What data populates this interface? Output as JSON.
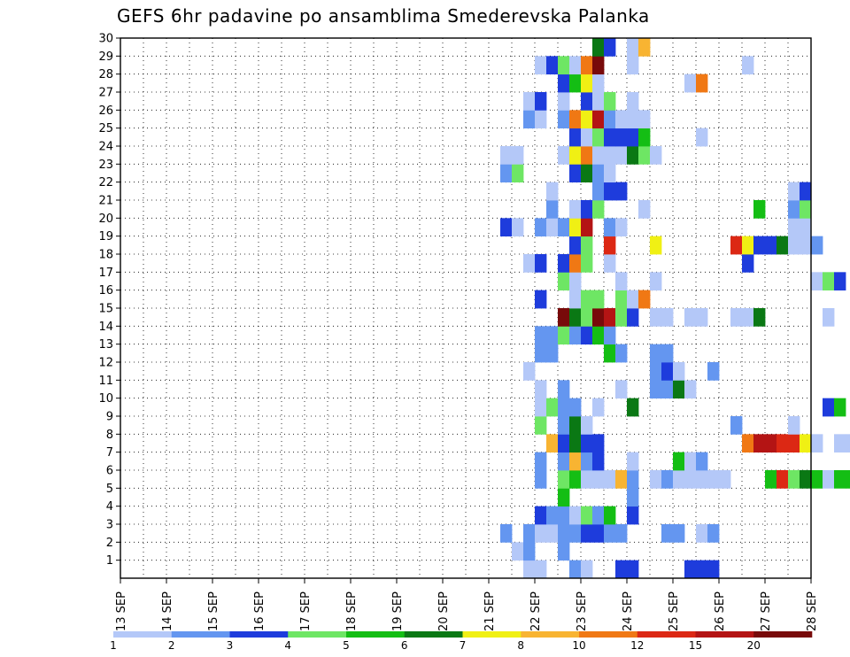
{
  "title": "GEFS 6hr padavine po ansamblima Smederevska Palanka",
  "chart_data": {
    "type": "heatmap",
    "title": "GEFS 6hr padavine po ansamblima Smederevska Palanka",
    "xlabel": "",
    "ylabel": "",
    "x_ticks": [
      "13 SEP",
      "14 SEP",
      "15 SEP",
      "16 SEP",
      "17 SEP",
      "18 SEP",
      "19 SEP",
      "20 SEP",
      "21 SEP",
      "22 SEP",
      "23 SEP",
      "24 SEP",
      "25 SEP",
      "26 SEP",
      "27 SEP",
      "28 SEP"
    ],
    "y_ticks": [
      1,
      2,
      3,
      4,
      5,
      6,
      7,
      8,
      9,
      10,
      11,
      12,
      13,
      14,
      15,
      16,
      17,
      18,
      19,
      20,
      21,
      22,
      23,
      24,
      25,
      26,
      27,
      28,
      29,
      30
    ],
    "x_range_days": [
      13,
      28
    ],
    "y_range": [
      0,
      30
    ],
    "steps_per_day": 4,
    "grid": true,
    "legend": {
      "position": "bottom",
      "labels": [
        "1",
        "2",
        "3",
        "4",
        "5",
        "6",
        "7",
        "8",
        "10",
        "12",
        "15",
        "20"
      ],
      "colors": [
        "#b4c8f8",
        "#6496f0",
        "#1e3cdc",
        "#6ee664",
        "#14be14",
        "#0a7814",
        "#f0f014",
        "#f8b432",
        "#f07814",
        "#dc2814",
        "#b41414",
        "#780a0a"
      ]
    },
    "cells_format": "[member, step_index_from_13SEP_00Z, color_class 0..11]",
    "cells": [
      [
        1,
        35,
        0
      ],
      [
        1,
        36,
        0
      ],
      [
        1,
        39,
        1
      ],
      [
        1,
        40,
        0
      ],
      [
        1,
        43,
        2
      ],
      [
        1,
        44,
        2
      ],
      [
        1,
        49,
        2
      ],
      [
        1,
        50,
        2
      ],
      [
        1,
        51,
        2
      ],
      [
        2,
        34,
        0
      ],
      [
        2,
        35,
        1
      ],
      [
        2,
        38,
        1
      ],
      [
        3,
        33,
        1
      ],
      [
        3,
        35,
        1
      ],
      [
        3,
        36,
        0
      ],
      [
        3,
        37,
        0
      ],
      [
        3,
        38,
        1
      ],
      [
        3,
        39,
        1
      ],
      [
        3,
        40,
        2
      ],
      [
        3,
        41,
        2
      ],
      [
        3,
        42,
        1
      ],
      [
        3,
        43,
        1
      ],
      [
        3,
        47,
        1
      ],
      [
        3,
        48,
        1
      ],
      [
        3,
        50,
        0
      ],
      [
        3,
        51,
        1
      ],
      [
        3,
        64,
        0
      ],
      [
        3,
        65,
        2
      ],
      [
        3,
        66,
        0
      ],
      [
        3,
        67,
        0
      ],
      [
        3,
        68,
        1
      ],
      [
        3,
        70,
        0
      ],
      [
        3,
        71,
        1
      ],
      [
        3,
        72,
        1
      ],
      [
        3,
        73,
        0
      ],
      [
        3,
        74,
        0
      ],
      [
        3,
        75,
        0
      ],
      [
        3,
        79,
        0
      ],
      [
        3,
        80,
        2
      ],
      [
        3,
        82,
        0
      ],
      [
        3,
        83,
        6
      ],
      [
        3,
        84,
        1
      ],
      [
        3,
        85,
        6
      ],
      [
        3,
        86,
        6
      ],
      [
        3,
        87,
        4
      ],
      [
        3,
        88,
        5
      ],
      [
        3,
        89,
        7
      ],
      [
        3,
        90,
        3
      ],
      [
        3,
        91,
        0
      ],
      [
        4,
        36,
        2
      ],
      [
        4,
        37,
        1
      ],
      [
        4,
        38,
        1
      ],
      [
        4,
        39,
        0
      ],
      [
        4,
        40,
        3
      ],
      [
        4,
        41,
        1
      ],
      [
        4,
        42,
        4
      ],
      [
        4,
        44,
        2
      ],
      [
        4,
        87,
        5
      ],
      [
        4,
        88,
        9
      ],
      [
        5,
        38,
        4
      ],
      [
        5,
        44,
        1
      ],
      [
        5,
        82,
        0
      ],
      [
        5,
        83,
        1
      ],
      [
        5,
        84,
        0
      ],
      [
        5,
        85,
        3
      ],
      [
        5,
        86,
        0
      ],
      [
        6,
        36,
        1
      ],
      [
        6,
        38,
        3
      ],
      [
        6,
        39,
        4
      ],
      [
        6,
        40,
        0
      ],
      [
        6,
        41,
        0
      ],
      [
        6,
        42,
        0
      ],
      [
        6,
        43,
        7
      ],
      [
        6,
        44,
        1
      ],
      [
        6,
        46,
        0
      ],
      [
        6,
        47,
        1
      ],
      [
        6,
        48,
        0
      ],
      [
        6,
        49,
        0
      ],
      [
        6,
        50,
        0
      ],
      [
        6,
        51,
        0
      ],
      [
        6,
        52,
        0
      ],
      [
        6,
        56,
        4
      ],
      [
        6,
        57,
        9
      ],
      [
        6,
        58,
        3
      ],
      [
        6,
        59,
        5
      ],
      [
        6,
        60,
        4
      ],
      [
        6,
        61,
        0
      ],
      [
        6,
        62,
        4
      ],
      [
        6,
        63,
        4
      ],
      [
        6,
        64,
        3
      ],
      [
        6,
        65,
        3
      ],
      [
        6,
        66,
        0
      ],
      [
        6,
        67,
        0
      ],
      [
        6,
        68,
        0
      ],
      [
        6,
        76,
        0
      ],
      [
        6,
        83,
        0
      ],
      [
        6,
        84,
        0
      ],
      [
        6,
        85,
        3
      ],
      [
        6,
        86,
        5
      ],
      [
        6,
        87,
        0
      ],
      [
        7,
        36,
        1
      ],
      [
        7,
        38,
        1
      ],
      [
        7,
        39,
        7
      ],
      [
        7,
        40,
        1
      ],
      [
        7,
        41,
        2
      ],
      [
        7,
        44,
        0
      ],
      [
        7,
        48,
        4
      ],
      [
        7,
        49,
        0
      ],
      [
        7,
        50,
        1
      ],
      [
        8,
        37,
        7
      ],
      [
        8,
        38,
        2
      ],
      [
        8,
        39,
        5
      ],
      [
        8,
        40,
        2
      ],
      [
        8,
        41,
        2
      ],
      [
        8,
        54,
        8
      ],
      [
        8,
        55,
        10
      ],
      [
        8,
        56,
        10
      ],
      [
        8,
        57,
        9
      ],
      [
        8,
        58,
        9
      ],
      [
        8,
        59,
        6
      ],
      [
        8,
        60,
        0
      ],
      [
        8,
        62,
        0
      ],
      [
        8,
        63,
        0
      ],
      [
        8,
        65,
        0
      ],
      [
        8,
        91,
        0
      ],
      [
        9,
        36,
        3
      ],
      [
        9,
        38,
        1
      ],
      [
        9,
        39,
        5
      ],
      [
        9,
        40,
        0
      ],
      [
        9,
        53,
        1
      ],
      [
        9,
        58,
        0
      ],
      [
        10,
        36,
        0
      ],
      [
        10,
        37,
        3
      ],
      [
        10,
        38,
        1
      ],
      [
        10,
        39,
        1
      ],
      [
        10,
        41,
        0
      ],
      [
        10,
        44,
        5
      ],
      [
        10,
        61,
        2
      ],
      [
        10,
        62,
        4
      ],
      [
        11,
        36,
        0
      ],
      [
        11,
        38,
        1
      ],
      [
        11,
        43,
        0
      ],
      [
        11,
        46,
        1
      ],
      [
        11,
        47,
        1
      ],
      [
        11,
        48,
        5
      ],
      [
        11,
        49,
        0
      ],
      [
        12,
        35,
        0
      ],
      [
        12,
        46,
        1
      ],
      [
        12,
        47,
        2
      ],
      [
        12,
        48,
        0
      ],
      [
        12,
        51,
        1
      ],
      [
        13,
        36,
        1
      ],
      [
        13,
        37,
        1
      ],
      [
        13,
        42,
        4
      ],
      [
        13,
        43,
        1
      ],
      [
        13,
        46,
        1
      ],
      [
        13,
        47,
        1
      ],
      [
        14,
        36,
        1
      ],
      [
        14,
        37,
        1
      ],
      [
        14,
        38,
        3
      ],
      [
        14,
        39,
        1
      ],
      [
        14,
        40,
        2
      ],
      [
        14,
        41,
        4
      ],
      [
        14,
        42,
        1
      ],
      [
        14,
        85,
        0
      ],
      [
        14,
        86,
        4
      ],
      [
        15,
        38,
        11
      ],
      [
        15,
        39,
        5
      ],
      [
        15,
        40,
        3
      ],
      [
        15,
        41,
        11
      ],
      [
        15,
        42,
        10
      ],
      [
        15,
        43,
        3
      ],
      [
        15,
        44,
        2
      ],
      [
        15,
        46,
        0
      ],
      [
        15,
        47,
        0
      ],
      [
        15,
        49,
        0
      ],
      [
        15,
        50,
        0
      ],
      [
        15,
        53,
        0
      ],
      [
        15,
        54,
        0
      ],
      [
        15,
        55,
        5
      ],
      [
        15,
        61,
        0
      ],
      [
        15,
        82,
        0
      ],
      [
        15,
        83,
        0
      ],
      [
        15,
        84,
        2
      ],
      [
        15,
        85,
        1
      ],
      [
        15,
        86,
        3
      ],
      [
        16,
        36,
        2
      ],
      [
        16,
        39,
        0
      ],
      [
        16,
        40,
        3
      ],
      [
        16,
        41,
        3
      ],
      [
        16,
        43,
        3
      ],
      [
        16,
        44,
        0
      ],
      [
        16,
        45,
        8
      ],
      [
        17,
        38,
        3
      ],
      [
        17,
        39,
        0
      ],
      [
        17,
        43,
        0
      ],
      [
        17,
        46,
        0
      ],
      [
        17,
        60,
        0
      ],
      [
        17,
        61,
        3
      ],
      [
        17,
        62,
        2
      ],
      [
        17,
        64,
        0
      ],
      [
        17,
        65,
        1
      ],
      [
        17,
        66,
        0
      ],
      [
        17,
        67,
        1
      ],
      [
        17,
        68,
        3
      ],
      [
        17,
        69,
        2
      ],
      [
        18,
        35,
        0
      ],
      [
        18,
        36,
        2
      ],
      [
        18,
        38,
        2
      ],
      [
        18,
        39,
        8
      ],
      [
        18,
        40,
        3
      ],
      [
        18,
        42,
        0
      ],
      [
        18,
        54,
        2
      ],
      [
        19,
        39,
        2
      ],
      [
        19,
        40,
        3
      ],
      [
        19,
        42,
        9
      ],
      [
        19,
        46,
        6
      ],
      [
        19,
        53,
        9
      ],
      [
        19,
        54,
        6
      ],
      [
        19,
        55,
        2
      ],
      [
        19,
        56,
        2
      ],
      [
        19,
        57,
        5
      ],
      [
        19,
        58,
        0
      ],
      [
        19,
        59,
        0
      ],
      [
        19,
        60,
        1
      ],
      [
        20,
        33,
        2
      ],
      [
        20,
        34,
        0
      ],
      [
        20,
        36,
        1
      ],
      [
        20,
        37,
        0
      ],
      [
        20,
        38,
        1
      ],
      [
        20,
        39,
        6
      ],
      [
        20,
        40,
        10
      ],
      [
        20,
        42,
        1
      ],
      [
        20,
        43,
        0
      ],
      [
        20,
        58,
        0
      ],
      [
        20,
        59,
        0
      ],
      [
        20,
        89,
        0
      ],
      [
        20,
        90,
        0
      ],
      [
        21,
        37,
        1
      ],
      [
        21,
        39,
        0
      ],
      [
        21,
        40,
        2
      ],
      [
        21,
        41,
        3
      ],
      [
        21,
        45,
        0
      ],
      [
        21,
        55,
        4
      ],
      [
        21,
        58,
        1
      ],
      [
        21,
        59,
        3
      ],
      [
        22,
        37,
        0
      ],
      [
        22,
        41,
        1
      ],
      [
        22,
        42,
        2
      ],
      [
        22,
        43,
        2
      ],
      [
        22,
        58,
        0
      ],
      [
        22,
        59,
        2
      ],
      [
        22,
        89,
        1
      ],
      [
        22,
        90,
        0
      ],
      [
        23,
        33,
        1
      ],
      [
        23,
        34,
        3
      ],
      [
        23,
        39,
        2
      ],
      [
        23,
        40,
        5
      ],
      [
        23,
        41,
        1
      ],
      [
        23,
        42,
        0
      ],
      [
        24,
        33,
        0
      ],
      [
        24,
        34,
        0
      ],
      [
        24,
        38,
        0
      ],
      [
        24,
        39,
        6
      ],
      [
        24,
        40,
        8
      ],
      [
        24,
        41,
        0
      ],
      [
        24,
        42,
        0
      ],
      [
        24,
        43,
        0
      ],
      [
        24,
        44,
        5
      ],
      [
        24,
        45,
        3
      ],
      [
        24,
        46,
        0
      ],
      [
        25,
        39,
        2
      ],
      [
        25,
        40,
        0
      ],
      [
        25,
        41,
        3
      ],
      [
        25,
        42,
        2
      ],
      [
        25,
        43,
        2
      ],
      [
        25,
        44,
        2
      ],
      [
        25,
        45,
        4
      ],
      [
        25,
        50,
        0
      ],
      [
        26,
        35,
        1
      ],
      [
        26,
        36,
        0
      ],
      [
        26,
        38,
        1
      ],
      [
        26,
        39,
        8
      ],
      [
        26,
        40,
        6
      ],
      [
        26,
        41,
        10
      ],
      [
        26,
        42,
        1
      ],
      [
        26,
        43,
        0
      ],
      [
        26,
        44,
        0
      ],
      [
        26,
        45,
        0
      ],
      [
        26,
        78,
        0
      ],
      [
        26,
        80,
        2
      ],
      [
        26,
        81,
        0
      ],
      [
        26,
        82,
        0
      ],
      [
        26,
        83,
        0
      ],
      [
        26,
        84,
        0
      ],
      [
        26,
        85,
        1
      ],
      [
        26,
        91,
        11
      ],
      [
        27,
        35,
        0
      ],
      [
        27,
        36,
        2
      ],
      [
        27,
        38,
        0
      ],
      [
        27,
        40,
        2
      ],
      [
        27,
        41,
        0
      ],
      [
        27,
        42,
        3
      ],
      [
        27,
        44,
        0
      ],
      [
        28,
        38,
        2
      ],
      [
        28,
        39,
        4
      ],
      [
        28,
        40,
        6
      ],
      [
        28,
        41,
        0
      ],
      [
        28,
        49,
        0
      ],
      [
        28,
        50,
        8
      ],
      [
        29,
        36,
        0
      ],
      [
        29,
        37,
        2
      ],
      [
        29,
        38,
        3
      ],
      [
        29,
        39,
        0
      ],
      [
        29,
        40,
        8
      ],
      [
        29,
        41,
        11
      ],
      [
        29,
        44,
        0
      ],
      [
        29,
        54,
        0
      ],
      [
        30,
        41,
        5
      ],
      [
        30,
        42,
        2
      ],
      [
        30,
        44,
        0
      ],
      [
        30,
        45,
        7
      ],
      [
        30,
        66,
        3
      ],
      [
        30,
        67,
        6
      ],
      [
        30,
        68,
        2
      ],
      [
        30,
        69,
        1
      ],
      [
        30,
        70,
        1
      ],
      [
        30,
        95,
        0
      ]
    ]
  }
}
